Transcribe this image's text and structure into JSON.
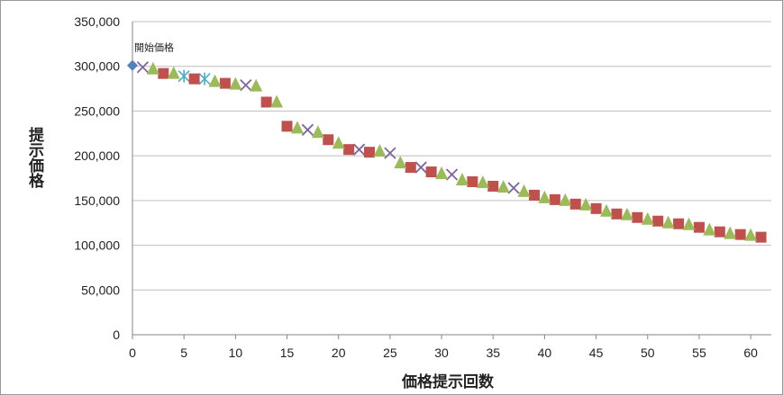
{
  "chart_data": {
    "type": "scatter",
    "xlabel": "価格提示回数",
    "ylabel": "提示価格",
    "xlim": [
      0,
      62
    ],
    "ylim": [
      0,
      350000
    ],
    "x_ticks": [
      "0",
      "5",
      "10",
      "15",
      "20",
      "25",
      "30",
      "35",
      "40",
      "45",
      "50",
      "55",
      "60"
    ],
    "y_ticks": [
      "0",
      "50,000",
      "100,000",
      "150,000",
      "200,000",
      "250,000",
      "300,000",
      "350,000"
    ],
    "grid": true,
    "legend": "none",
    "annotations": [
      {
        "text": "開始価格",
        "x": 0,
        "y": 301000
      }
    ],
    "series": [
      {
        "marker": "diamond",
        "color": "#4f81bd",
        "points": [
          [
            0,
            301000
          ]
        ]
      },
      {
        "marker": "x",
        "color": "#8064a2",
        "points": [
          [
            1,
            299000
          ],
          [
            11,
            279000
          ],
          [
            17,
            229000
          ],
          [
            22,
            207000
          ],
          [
            25,
            203000
          ],
          [
            28,
            187000
          ],
          [
            31,
            179000
          ],
          [
            37,
            164000
          ]
        ]
      },
      {
        "marker": "asterisk",
        "color": "#4bacc6",
        "points": [
          [
            5,
            289000
          ],
          [
            7,
            286000
          ]
        ]
      },
      {
        "marker": "square",
        "color": "#c0504d",
        "points": [
          [
            3,
            292000
          ],
          [
            6,
            286000
          ],
          [
            9,
            281000
          ],
          [
            13,
            260000
          ],
          [
            15,
            233000
          ],
          [
            19,
            218000
          ],
          [
            21,
            207000
          ],
          [
            23,
            204000
          ],
          [
            27,
            187000
          ],
          [
            29,
            182000
          ],
          [
            33,
            171000
          ],
          [
            35,
            166000
          ],
          [
            39,
            156000
          ],
          [
            41,
            151000
          ],
          [
            43,
            146000
          ],
          [
            45,
            141000
          ],
          [
            47,
            135000
          ],
          [
            49,
            131000
          ],
          [
            51,
            127000
          ],
          [
            53,
            124000
          ],
          [
            55,
            120000
          ],
          [
            57,
            115000
          ],
          [
            59,
            112000
          ],
          [
            61,
            109000
          ]
        ]
      },
      {
        "marker": "triangle",
        "color": "#9bbb59",
        "points": [
          [
            2,
            297000
          ],
          [
            4,
            292000
          ],
          [
            8,
            283000
          ],
          [
            10,
            280000
          ],
          [
            12,
            278000
          ],
          [
            14,
            260000
          ],
          [
            16,
            231000
          ],
          [
            18,
            226000
          ],
          [
            20,
            214000
          ],
          [
            24,
            205000
          ],
          [
            26,
            192000
          ],
          [
            30,
            180000
          ],
          [
            32,
            173000
          ],
          [
            34,
            170000
          ],
          [
            36,
            165000
          ],
          [
            38,
            160000
          ],
          [
            40,
            153000
          ],
          [
            42,
            150000
          ],
          [
            44,
            145000
          ],
          [
            46,
            138000
          ],
          [
            48,
            134000
          ],
          [
            50,
            129000
          ],
          [
            52,
            125000
          ],
          [
            54,
            123000
          ],
          [
            56,
            117000
          ],
          [
            58,
            113000
          ],
          [
            60,
            111000
          ]
        ]
      }
    ]
  }
}
